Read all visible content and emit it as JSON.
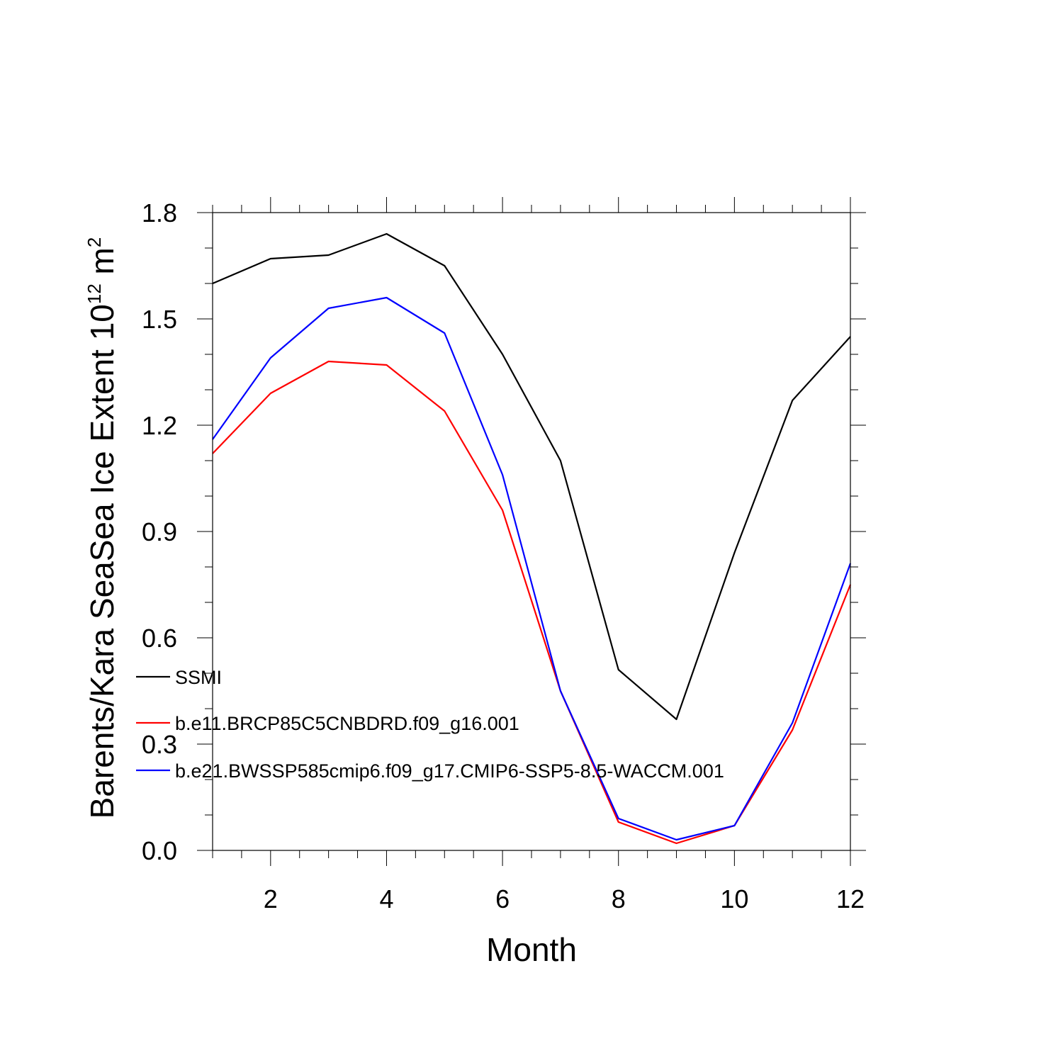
{
  "chart_data": {
    "type": "line",
    "title": "",
    "xlabel": "Month",
    "ylabel_main": "Barents/Kara SeaSea Ice Extent 10",
    "ylabel_exponent": "12",
    "ylabel_unit": " m",
    "ylabel_unit_exponent": "2",
    "x": [
      1,
      2,
      3,
      4,
      5,
      6,
      7,
      8,
      9,
      10,
      11,
      12
    ],
    "xlim": [
      1,
      12
    ],
    "ylim": [
      0,
      1.8
    ],
    "xticks": [
      2,
      4,
      6,
      8,
      10,
      12
    ],
    "xtick_labels": [
      "2",
      "4",
      "6",
      "8",
      "10",
      "12"
    ],
    "yticks": [
      0.0,
      0.3,
      0.6,
      0.9,
      1.2,
      1.5,
      1.8
    ],
    "ytick_labels": [
      "0.0",
      "0.3",
      "0.6",
      "0.9",
      "1.2",
      "1.5",
      "1.8"
    ],
    "grid": false,
    "legend_position": "lower-left",
    "series": [
      {
        "name": "SSMI",
        "color": "#000000",
        "values": [
          1.6,
          1.67,
          1.68,
          1.74,
          1.65,
          1.4,
          1.1,
          0.51,
          0.37,
          0.84,
          1.27,
          1.45
        ]
      },
      {
        "name": "b.e11.BRCP85C5CNBDRD.f09_g16.001",
        "color": "#ff0000",
        "values": [
          1.12,
          1.29,
          1.38,
          1.37,
          1.24,
          0.96,
          0.45,
          0.08,
          0.02,
          0.07,
          0.34,
          0.75
        ]
      },
      {
        "name": "b.e21.BWSSP585cmip6.f09_g17.CMIP6-SSP5-8.5-WACCM.001",
        "color": "#0000ff",
        "values": [
          1.16,
          1.39,
          1.53,
          1.56,
          1.46,
          1.06,
          0.45,
          0.09,
          0.03,
          0.07,
          0.36,
          0.81
        ]
      }
    ]
  }
}
